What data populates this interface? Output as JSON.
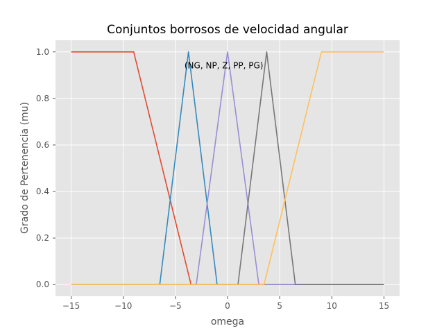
{
  "chart_data": {
    "type": "line",
    "title": "Conjuntos borrosos de velocidad angular",
    "xlabel": "omega",
    "ylabel": "Grado de Pertenencia (mu)",
    "xlim": [
      -16.5,
      16.5
    ],
    "ylim": [
      -0.05,
      1.05
    ],
    "xticks": [
      -15,
      -10,
      -5,
      0,
      5,
      10,
      15
    ],
    "yticks": [
      0.0,
      0.2,
      0.4,
      0.6,
      0.8,
      1.0
    ],
    "xtick_labels": [
      "−15",
      "−10",
      "−5",
      "0",
      "5",
      "10",
      "15"
    ],
    "ytick_labels": [
      "0.0",
      "0.2",
      "0.4",
      "0.6",
      "0.8",
      "1.0"
    ],
    "grid": true,
    "annotation": {
      "text": "(NG, NP, Z, PP, PG)",
      "x": -4,
      "y": 0.93
    },
    "series": [
      {
        "color": "#E24A33",
        "x": [
          -15,
          -9,
          -3.5,
          15
        ],
        "y": [
          1,
          1,
          0,
          0
        ]
      },
      {
        "color": "#348ABD",
        "x": [
          -15,
          -6.5,
          -3.75,
          -1,
          15
        ],
        "y": [
          0,
          0,
          1,
          0,
          0
        ]
      },
      {
        "color": "#988ED5",
        "x": [
          -15,
          -3,
          0,
          3,
          15
        ],
        "y": [
          0,
          0,
          1,
          0,
          0
        ]
      },
      {
        "color": "#777777",
        "x": [
          -15,
          1,
          3.75,
          6.5,
          15
        ],
        "y": [
          0,
          0,
          1,
          0,
          0
        ]
      },
      {
        "color": "#FBC15E",
        "x": [
          -15,
          3.5,
          9,
          15
        ],
        "y": [
          0,
          0,
          1,
          1
        ]
      }
    ]
  }
}
